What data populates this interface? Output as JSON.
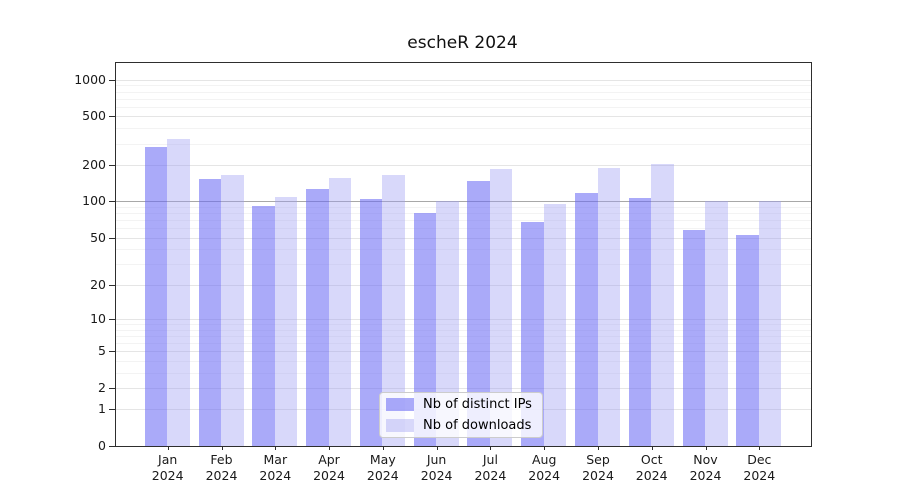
{
  "title": "escheR 2024",
  "chart_data": {
    "type": "bar",
    "scale": "log1p",
    "categories": [
      "Jan",
      "Feb",
      "Mar",
      "Apr",
      "May",
      "Jun",
      "Jul",
      "Aug",
      "Sep",
      "Oct",
      "Nov",
      "Dec"
    ],
    "year_label": "2024",
    "series": [
      {
        "name": "Nb of distinct IPs",
        "color": "#aaaafa",
        "fill": "rgba(105,105,245,0.57)",
        "values": [
          280,
          153,
          91,
          127,
          104,
          80,
          146,
          68,
          118,
          106,
          58,
          53
        ]
      },
      {
        "name": "Nb of downloads",
        "color": "#d8d8fa",
        "fill": "rgba(155,155,242,0.39)",
        "values": [
          329,
          164,
          108,
          156,
          166,
          101,
          185,
          96,
          190,
          203,
          100,
          100
        ]
      }
    ],
    "y_ticks": [
      0,
      1,
      2,
      5,
      10,
      20,
      50,
      100,
      200,
      500,
      1000
    ],
    "ylim": [
      0,
      1372
    ],
    "emphasized_gridline": 100,
    "grid": "on",
    "legend_position": "bottom-center",
    "xlabel": "",
    "ylabel": ""
  }
}
